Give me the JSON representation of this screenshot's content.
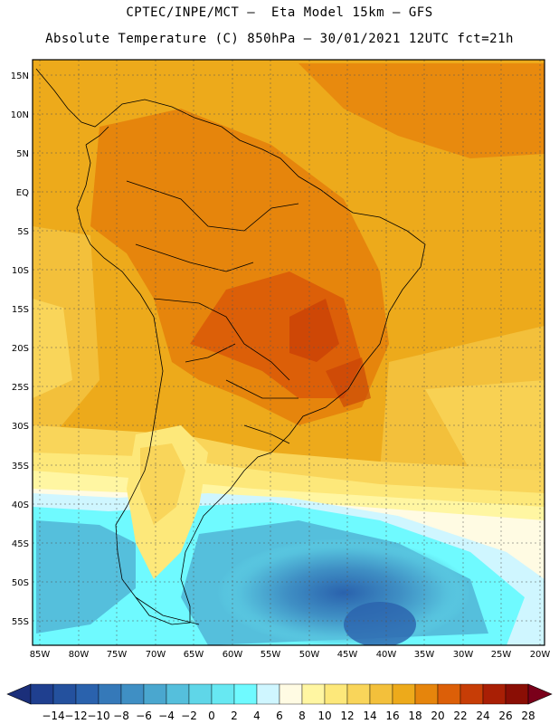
{
  "header": {
    "line1": "CPTEC/INPE/MCT –  Eta Model 15km – GFS",
    "line2": "Absolute Temperature (C) 850hPa – 30/01/2021 12UTC fct=21h"
  },
  "map": {
    "lat_labels": [
      "15N",
      "10N",
      "5N",
      "EQ",
      "5S",
      "10S",
      "15S",
      "20S",
      "25S",
      "30S",
      "35S",
      "40S",
      "45S",
      "50S",
      "55S"
    ],
    "lon_labels": [
      "85W",
      "80W",
      "75W",
      "70W",
      "65W",
      "60W",
      "55W",
      "50W",
      "45W",
      "40W",
      "35W",
      "30W",
      "25W",
      "20W"
    ]
  },
  "colorbar": {
    "labels": [
      "-14",
      "-12",
      "-10",
      "-8",
      "-6",
      "-4",
      "-2",
      "0",
      "2",
      "4",
      "6",
      "8",
      "10",
      "12",
      "14",
      "16",
      "18",
      "20",
      "22",
      "24",
      "26",
      "28"
    ],
    "colors": [
      "#1f3f8f",
      "#24519e",
      "#2a62ad",
      "#3579b9",
      "#3f8fc4",
      "#4aa7cf",
      "#55bfdc",
      "#5fd6e8",
      "#67e8f2",
      "#6ffaff",
      "#cff6ff",
      "#fffbe3",
      "#fff6a2",
      "#fde87a",
      "#f9d55a",
      "#f3c03b",
      "#edaa1b",
      "#e6850c",
      "#dc5f08",
      "#c73d06",
      "#a91f05",
      "#8a0e05"
    ],
    "min_arrow_color": "#1b2f7a",
    "max_arrow_color": "#7a001a"
  }
}
